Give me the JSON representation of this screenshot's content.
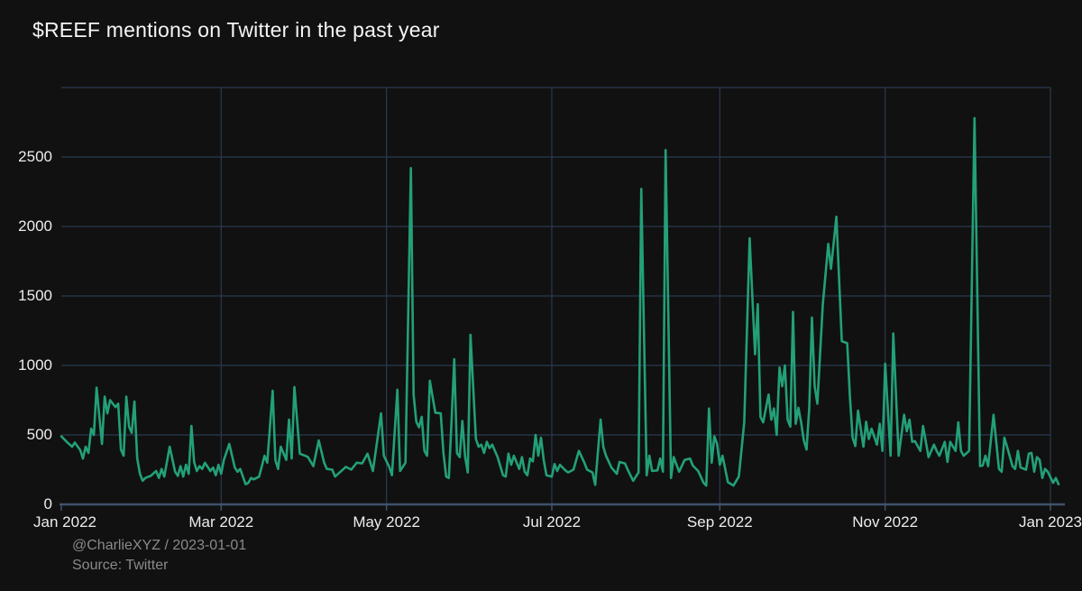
{
  "title": "$REEF mentions on Twitter in the past year",
  "footer": {
    "credit": "@CharlieXYZ / 2023-01-01",
    "source": "Source: Twitter"
  },
  "colors": {
    "background": "#111111",
    "line": "#23a078",
    "grid": "#2b3a4f",
    "axis": "#41526b",
    "text": "#ececec",
    "muted": "#8a8a8a"
  },
  "chart_data": {
    "type": "line",
    "title": "$REEF mentions on Twitter in the past year",
    "series_name": "$REEF mentions",
    "grid": true,
    "legend": false,
    "x_axis": {
      "unit": "days from 2022-01-01",
      "range_days": [
        0,
        370
      ],
      "tick_days": [
        0,
        59,
        120,
        181,
        243,
        304,
        365
      ],
      "tick_labels": [
        "Jan 2022",
        "Mar 2022",
        "May 2022",
        "Jul 2022",
        "Sep 2022",
        "Nov 2022",
        "Jan 2023"
      ]
    },
    "y_axis": {
      "min": 0,
      "max": 3000,
      "tick_step": 500,
      "labeled_ticks": [
        0,
        500,
        1000,
        1500,
        2000,
        2500
      ]
    },
    "points": [
      [
        0,
        490
      ],
      [
        2,
        450
      ],
      [
        4,
        415
      ],
      [
        5,
        445
      ],
      [
        7,
        390
      ],
      [
        8,
        330
      ],
      [
        9,
        415
      ],
      [
        10,
        370
      ],
      [
        11,
        545
      ],
      [
        12,
        500
      ],
      [
        13,
        840
      ],
      [
        15,
        435
      ],
      [
        16,
        775
      ],
      [
        17,
        655
      ],
      [
        18,
        750
      ],
      [
        20,
        700
      ],
      [
        21,
        725
      ],
      [
        22,
        395
      ],
      [
        23,
        350
      ],
      [
        24,
        775
      ],
      [
        25,
        560
      ],
      [
        26,
        515
      ],
      [
        27,
        740
      ],
      [
        28,
        330
      ],
      [
        29,
        220
      ],
      [
        30,
        170
      ],
      [
        31,
        190
      ],
      [
        33,
        205
      ],
      [
        35,
        240
      ],
      [
        36,
        190
      ],
      [
        37,
        255
      ],
      [
        38,
        200
      ],
      [
        40,
        415
      ],
      [
        42,
        235
      ],
      [
        43,
        205
      ],
      [
        44,
        275
      ],
      [
        45,
        200
      ],
      [
        46,
        285
      ],
      [
        47,
        220
      ],
      [
        48,
        565
      ],
      [
        49,
        305
      ],
      [
        50,
        240
      ],
      [
        51,
        275
      ],
      [
        52,
        255
      ],
      [
        53,
        300
      ],
      [
        55,
        240
      ],
      [
        56,
        265
      ],
      [
        57,
        210
      ],
      [
        58,
        285
      ],
      [
        59,
        220
      ],
      [
        60,
        320
      ],
      [
        62,
        435
      ],
      [
        64,
        265
      ],
      [
        65,
        235
      ],
      [
        66,
        255
      ],
      [
        68,
        145
      ],
      [
        69,
        155
      ],
      [
        70,
        190
      ],
      [
        71,
        180
      ],
      [
        73,
        200
      ],
      [
        75,
        350
      ],
      [
        76,
        300
      ],
      [
        78,
        818
      ],
      [
        79,
        320
      ],
      [
        80,
        255
      ],
      [
        81,
        415
      ],
      [
        83,
        320
      ],
      [
        84,
        610
      ],
      [
        85,
        330
      ],
      [
        86,
        845
      ],
      [
        88,
        365
      ],
      [
        90,
        350
      ],
      [
        91,
        340
      ],
      [
        93,
        275
      ],
      [
        95,
        460
      ],
      [
        97,
        300
      ],
      [
        98,
        255
      ],
      [
        100,
        250
      ],
      [
        101,
        200
      ],
      [
        103,
        235
      ],
      [
        105,
        270
      ],
      [
        107,
        250
      ],
      [
        109,
        300
      ],
      [
        111,
        295
      ],
      [
        113,
        365
      ],
      [
        115,
        240
      ],
      [
        118,
        655
      ],
      [
        119,
        350
      ],
      [
        121,
        270
      ],
      [
        122,
        210
      ],
      [
        124,
        825
      ],
      [
        125,
        240
      ],
      [
        127,
        300
      ],
      [
        129,
        2420
      ],
      [
        130,
        790
      ],
      [
        131,
        595
      ],
      [
        132,
        555
      ],
      [
        133,
        630
      ],
      [
        134,
        385
      ],
      [
        135,
        350
      ],
      [
        136,
        890
      ],
      [
        138,
        660
      ],
      [
        140,
        655
      ],
      [
        141,
        370
      ],
      [
        142,
        200
      ],
      [
        143,
        190
      ],
      [
        144,
        600
      ],
      [
        145,
        1045
      ],
      [
        146,
        370
      ],
      [
        147,
        340
      ],
      [
        148,
        600
      ],
      [
        149,
        345
      ],
      [
        150,
        230
      ],
      [
        151,
        1220
      ],
      [
        153,
        470
      ],
      [
        154,
        415
      ],
      [
        155,
        430
      ],
      [
        156,
        370
      ],
      [
        157,
        450
      ],
      [
        158,
        405
      ],
      [
        159,
        430
      ],
      [
        161,
        340
      ],
      [
        163,
        210
      ],
      [
        164,
        200
      ],
      [
        165,
        365
      ],
      [
        166,
        285
      ],
      [
        167,
        350
      ],
      [
        169,
        255
      ],
      [
        170,
        340
      ],
      [
        171,
        235
      ],
      [
        172,
        210
      ],
      [
        173,
        330
      ],
      [
        174,
        310
      ],
      [
        175,
        500
      ],
      [
        176,
        350
      ],
      [
        177,
        480
      ],
      [
        178,
        320
      ],
      [
        179,
        210
      ],
      [
        181,
        200
      ],
      [
        182,
        290
      ],
      [
        183,
        240
      ],
      [
        184,
        285
      ],
      [
        186,
        245
      ],
      [
        187,
        230
      ],
      [
        189,
        250
      ],
      [
        191,
        385
      ],
      [
        193,
        300
      ],
      [
        194,
        250
      ],
      [
        196,
        230
      ],
      [
        197,
        140
      ],
      [
        199,
        610
      ],
      [
        200,
        415
      ],
      [
        201,
        350
      ],
      [
        203,
        265
      ],
      [
        205,
        220
      ],
      [
        206,
        305
      ],
      [
        208,
        295
      ],
      [
        209,
        250
      ],
      [
        211,
        170
      ],
      [
        213,
        230
      ],
      [
        214,
        2270
      ],
      [
        216,
        210
      ],
      [
        217,
        350
      ],
      [
        218,
        240
      ],
      [
        220,
        245
      ],
      [
        221,
        330
      ],
      [
        222,
        235
      ],
      [
        223,
        2550
      ],
      [
        225,
        190
      ],
      [
        226,
        340
      ],
      [
        228,
        235
      ],
      [
        230,
        320
      ],
      [
        232,
        330
      ],
      [
        233,
        280
      ],
      [
        235,
        240
      ],
      [
        237,
        155
      ],
      [
        238,
        135
      ],
      [
        239,
        690
      ],
      [
        240,
        300
      ],
      [
        241,
        490
      ],
      [
        242,
        435
      ],
      [
        243,
        285
      ],
      [
        244,
        350
      ],
      [
        246,
        160
      ],
      [
        248,
        135
      ],
      [
        250,
        200
      ],
      [
        252,
        590
      ],
      [
        254,
        1915
      ],
      [
        256,
        1080
      ],
      [
        257,
        1440
      ],
      [
        258,
        630
      ],
      [
        259,
        590
      ],
      [
        261,
        790
      ],
      [
        262,
        610
      ],
      [
        263,
        690
      ],
      [
        264,
        500
      ],
      [
        265,
        985
      ],
      [
        266,
        850
      ],
      [
        267,
        1000
      ],
      [
        268,
        610
      ],
      [
        269,
        560
      ],
      [
        270,
        1385
      ],
      [
        271,
        580
      ],
      [
        272,
        695
      ],
      [
        273,
        590
      ],
      [
        274,
        460
      ],
      [
        275,
        395
      ],
      [
        276,
        695
      ],
      [
        277,
        1345
      ],
      [
        278,
        850
      ],
      [
        279,
        725
      ],
      [
        281,
        1435
      ],
      [
        283,
        1875
      ],
      [
        284,
        1695
      ],
      [
        286,
        2070
      ],
      [
        288,
        1175
      ],
      [
        290,
        1160
      ],
      [
        291,
        775
      ],
      [
        292,
        480
      ],
      [
        293,
        420
      ],
      [
        294,
        675
      ],
      [
        296,
        415
      ],
      [
        297,
        595
      ],
      [
        298,
        470
      ],
      [
        299,
        545
      ],
      [
        301,
        430
      ],
      [
        302,
        580
      ],
      [
        303,
        385
      ],
      [
        304,
        1013
      ],
      [
        306,
        350
      ],
      [
        307,
        1230
      ],
      [
        309,
        350
      ],
      [
        311,
        645
      ],
      [
        312,
        525
      ],
      [
        313,
        610
      ],
      [
        314,
        450
      ],
      [
        315,
        455
      ],
      [
        317,
        385
      ],
      [
        318,
        565
      ],
      [
        320,
        340
      ],
      [
        322,
        430
      ],
      [
        323,
        385
      ],
      [
        324,
        350
      ],
      [
        326,
        450
      ],
      [
        327,
        305
      ],
      [
        328,
        450
      ],
      [
        330,
        385
      ],
      [
        331,
        590
      ],
      [
        332,
        385
      ],
      [
        333,
        350
      ],
      [
        335,
        385
      ],
      [
        337,
        2780
      ],
      [
        339,
        275
      ],
      [
        340,
        280
      ],
      [
        341,
        350
      ],
      [
        342,
        275
      ],
      [
        344,
        645
      ],
      [
        346,
        255
      ],
      [
        347,
        235
      ],
      [
        348,
        480
      ],
      [
        349,
        415
      ],
      [
        351,
        275
      ],
      [
        352,
        255
      ],
      [
        353,
        385
      ],
      [
        354,
        265
      ],
      [
        356,
        250
      ],
      [
        357,
        365
      ],
      [
        358,
        370
      ],
      [
        359,
        235
      ],
      [
        360,
        340
      ],
      [
        361,
        320
      ],
      [
        362,
        190
      ],
      [
        363,
        255
      ],
      [
        364,
        235
      ],
      [
        366,
        155
      ],
      [
        367,
        190
      ],
      [
        368,
        145
      ]
    ]
  }
}
